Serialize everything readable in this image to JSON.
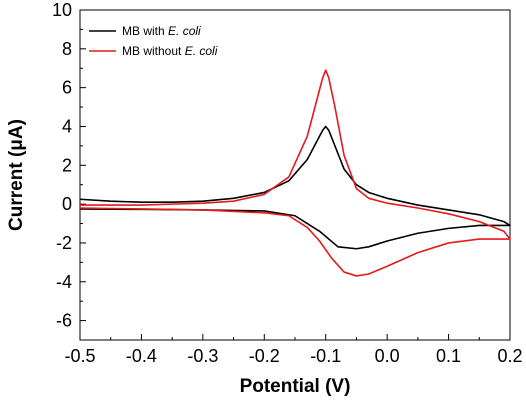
{
  "chart_data": {
    "type": "line",
    "xlabel": "Potential (V)",
    "ylabel": "Current (μA)",
    "xlim": [
      -0.5,
      0.2
    ],
    "ylim": [
      -7,
      10
    ],
    "xticks": [
      "-0.5",
      "-0.4",
      "-0.3",
      "-0.2",
      "-0.1",
      "0.0",
      "0.1",
      "0.2"
    ],
    "yticks": [
      "-6",
      "-4",
      "-2",
      "0",
      "2",
      "4",
      "6",
      "8",
      "10"
    ],
    "grid": false,
    "legend_position": "top-left",
    "series": [
      {
        "name": "MB with E. coli",
        "name_prefix": "MB with ",
        "name_italic": "E. coli",
        "color": "#000000",
        "x": [
          -0.5,
          -0.45,
          -0.4,
          -0.35,
          -0.3,
          -0.25,
          -0.2,
          -0.16,
          -0.13,
          -0.115,
          -0.105,
          -0.1,
          -0.095,
          -0.085,
          -0.07,
          -0.05,
          -0.03,
          0.0,
          0.05,
          0.1,
          0.15,
          0.19,
          0.2,
          0.15,
          0.1,
          0.05,
          0.0,
          -0.03,
          -0.05,
          -0.08,
          -0.11,
          -0.15,
          -0.2,
          -0.3,
          -0.4,
          -0.5
        ],
        "y": [
          0.25,
          0.15,
          0.1,
          0.1,
          0.15,
          0.3,
          0.6,
          1.2,
          2.3,
          3.2,
          3.8,
          4.0,
          3.8,
          3.0,
          1.8,
          1.0,
          0.6,
          0.3,
          -0.05,
          -0.3,
          -0.55,
          -0.9,
          -1.1,
          -1.1,
          -1.25,
          -1.5,
          -1.9,
          -2.2,
          -2.3,
          -2.2,
          -1.4,
          -0.6,
          -0.35,
          -0.3,
          -0.27,
          -0.25
        ]
      },
      {
        "name": "MB without E. coli",
        "name_prefix": "MB without ",
        "name_italic": "E. coli",
        "color": "#e41a1c",
        "x": [
          -0.5,
          -0.45,
          -0.4,
          -0.35,
          -0.3,
          -0.25,
          -0.2,
          -0.16,
          -0.13,
          -0.115,
          -0.105,
          -0.1,
          -0.095,
          -0.085,
          -0.07,
          -0.05,
          -0.03,
          0.0,
          0.05,
          0.1,
          0.15,
          0.19,
          0.2,
          0.15,
          0.1,
          0.05,
          0.0,
          -0.03,
          -0.05,
          -0.07,
          -0.09,
          -0.11,
          -0.13,
          -0.16,
          -0.2,
          -0.3,
          -0.4,
          -0.5
        ],
        "y": [
          -0.05,
          -0.05,
          -0.05,
          0.0,
          0.05,
          0.15,
          0.5,
          1.4,
          3.5,
          5.3,
          6.5,
          6.9,
          6.5,
          5.0,
          2.5,
          0.8,
          0.3,
          0.05,
          -0.2,
          -0.5,
          -0.9,
          -1.4,
          -1.8,
          -1.8,
          -2.0,
          -2.5,
          -3.2,
          -3.6,
          -3.7,
          -3.5,
          -2.8,
          -1.9,
          -1.2,
          -0.6,
          -0.45,
          -0.3,
          -0.25,
          -0.2
        ]
      }
    ]
  }
}
